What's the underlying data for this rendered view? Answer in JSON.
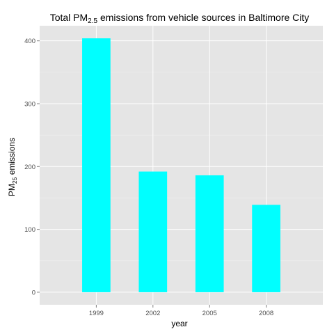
{
  "colors": {
    "panel": "#e5e5e5",
    "grid_major": "#ffffff",
    "grid_minor": "#f2f2f2",
    "bar": "#00ffff",
    "tick_text": "#4d4d4d",
    "tick_mark": "#7f7f7f"
  },
  "chart_data": {
    "type": "bar",
    "title": {
      "prefix": "Total PM",
      "subscript": "2.5",
      "suffix": " emissions from vehicle sources in Baltimore City"
    },
    "xlabel": "year",
    "ylabel": {
      "prefix": "PM",
      "subscript": "25",
      "suffix": " emissions"
    },
    "categories": [
      "1999",
      "2002",
      "2005",
      "2008"
    ],
    "values": [
      404,
      192,
      186,
      139
    ],
    "ylim": [
      -20,
      424
    ],
    "y_ticks": [
      0,
      100,
      200,
      300,
      400
    ],
    "y_tick_labels": [
      "0",
      "100",
      "200",
      "300",
      "400"
    ],
    "grid": true,
    "legend": "none"
  }
}
